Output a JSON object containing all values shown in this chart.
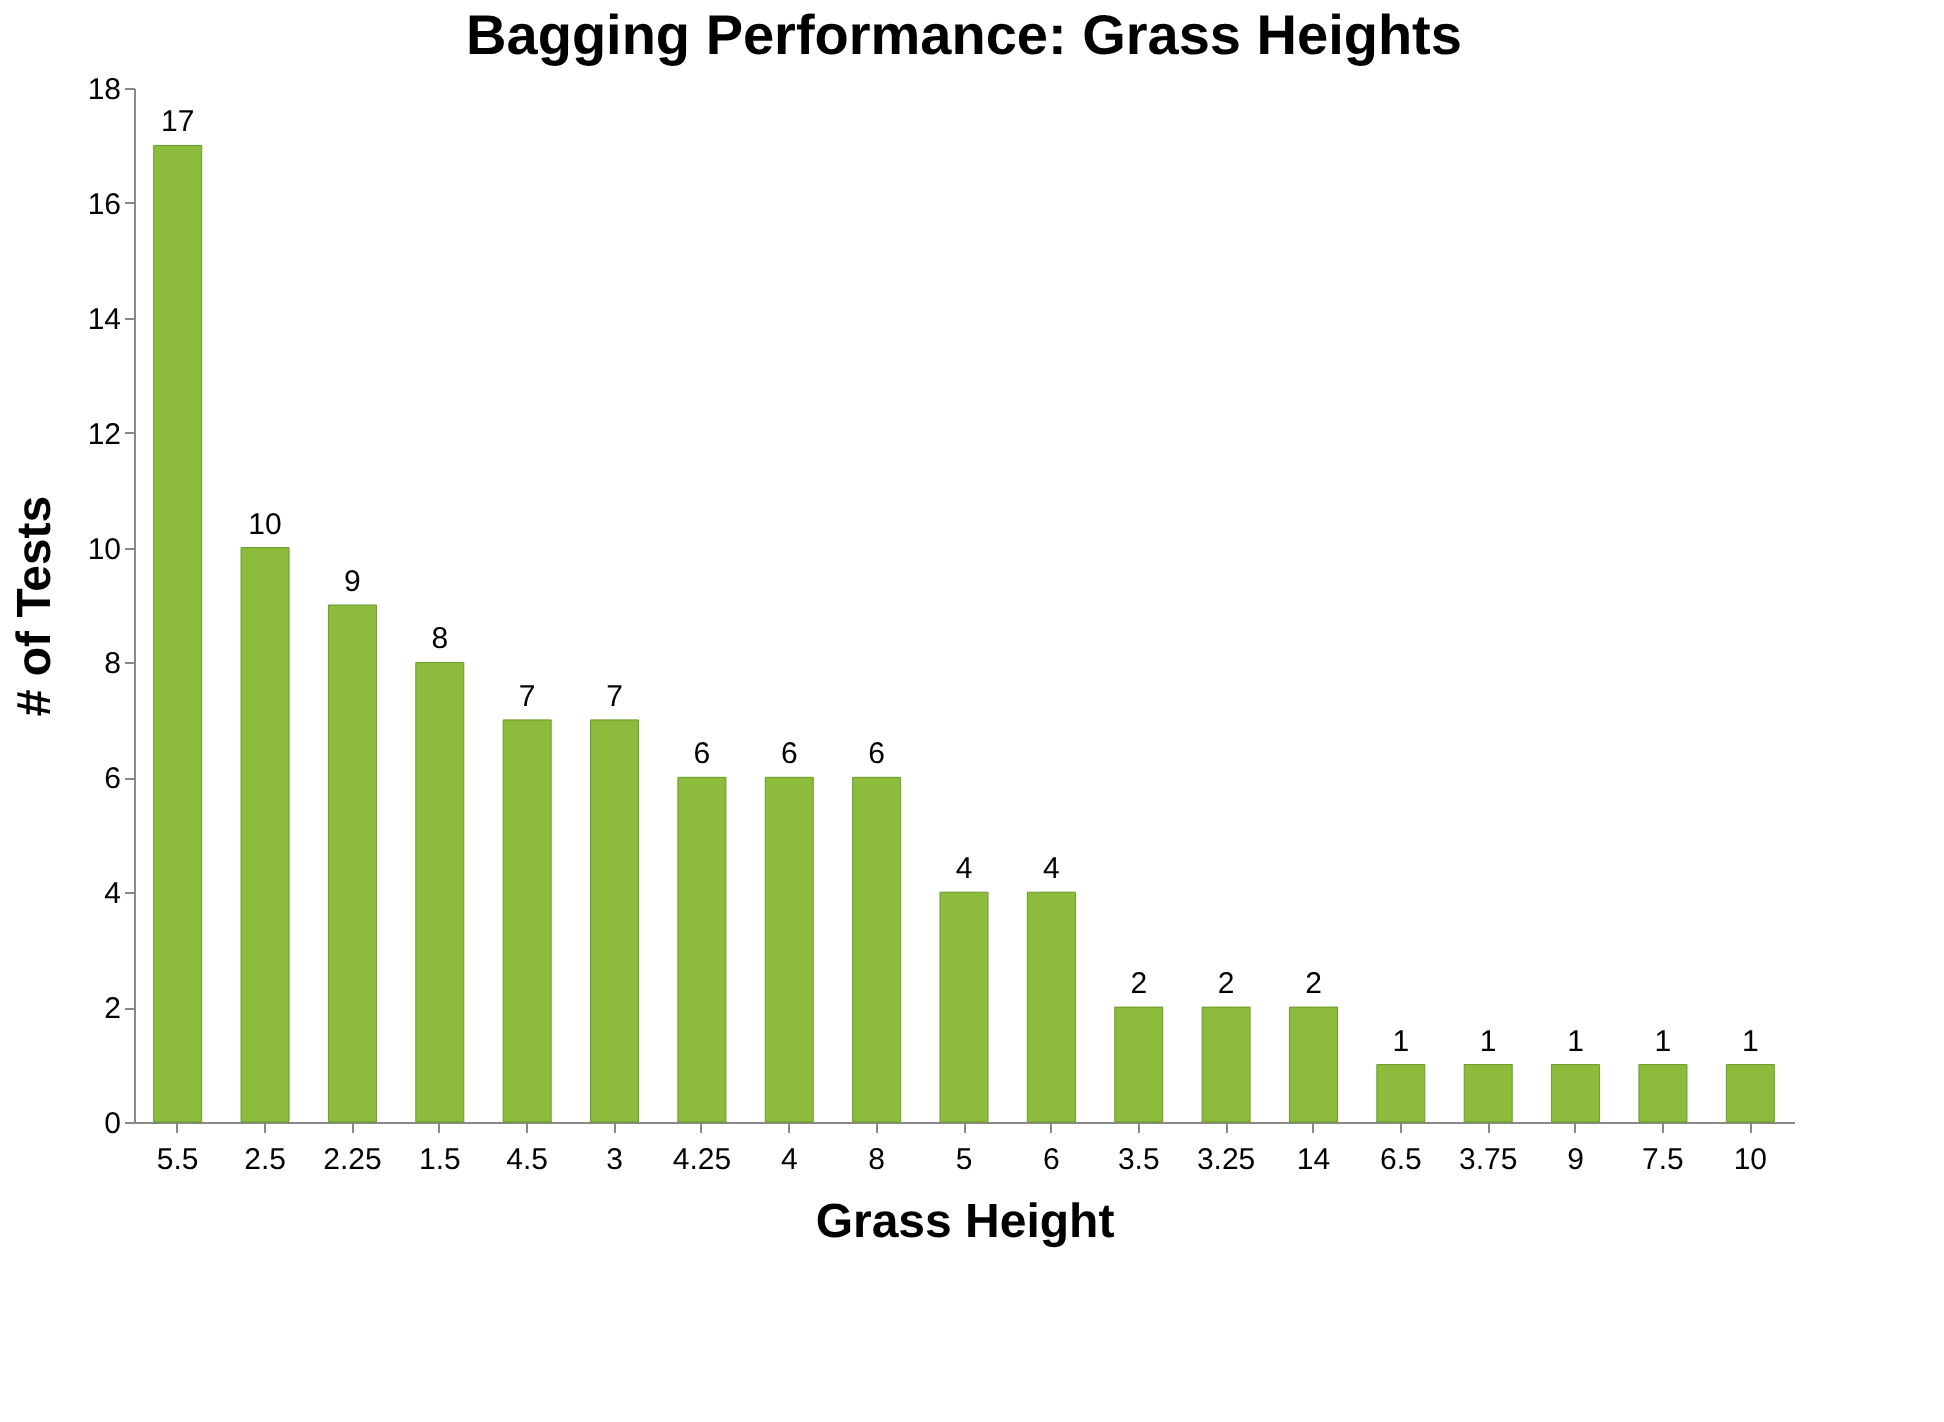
{
  "chart_data": {
    "type": "bar",
    "title": "Bagging Performance: Grass Heights",
    "xlabel": "Grass Height",
    "ylabel": "# of Tests",
    "categories": [
      "5.5",
      "2.5",
      "2.25",
      "1.5",
      "4.5",
      "3",
      "4.25",
      "4",
      "8",
      "5",
      "6",
      "3.5",
      "3.25",
      "14",
      "6.5",
      "3.75",
      "9",
      "7.5",
      "10"
    ],
    "values": [
      17,
      10,
      9,
      8,
      7,
      7,
      6,
      6,
      6,
      4,
      4,
      2,
      2,
      2,
      1,
      1,
      1,
      1,
      1
    ],
    "color": "#8dbb3c",
    "ylim": [
      0,
      18
    ],
    "yticks": [
      0,
      2,
      4,
      6,
      8,
      10,
      12,
      14,
      16,
      18
    ],
    "grid": false,
    "data_labels": true
  }
}
